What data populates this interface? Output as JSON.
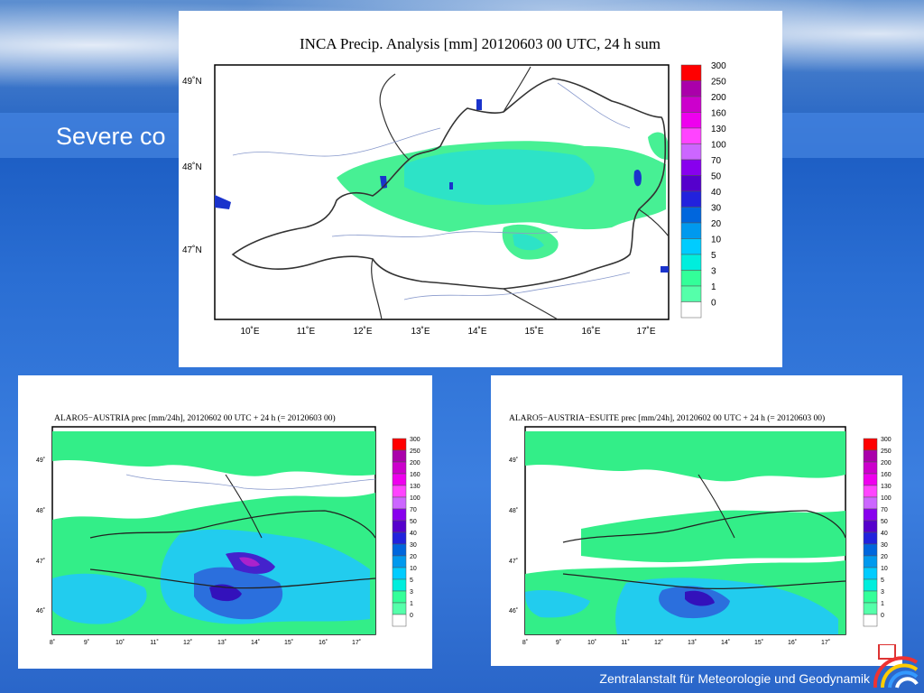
{
  "slide": {
    "title": "Severe co",
    "footer": "Zentralanstalt für Meteorologie und Geodynamik"
  },
  "main_map": {
    "title": "INCA Precip. Analysis [mm] 20120603 00 UTC, 24 h sum",
    "lat_labels": [
      "49˚N",
      "48˚N",
      "47˚N"
    ],
    "lon_labels": [
      "10˚E",
      "11˚E",
      "12˚E",
      "13˚E",
      "14˚E",
      "15˚E",
      "16˚E",
      "17˚E"
    ],
    "colorbar_labels": [
      "300",
      "250",
      "200",
      "160",
      "130",
      "100",
      "70",
      "50",
      "40",
      "30",
      "20",
      "10",
      "5",
      "3",
      "1",
      "0"
    ]
  },
  "left_map": {
    "title": "ALARO5−AUSTRIA prec [mm/24h], 20120602 00 UTC + 24 h (= 20120603 00)",
    "lat_labels": [
      "49˚",
      "48˚",
      "47˚",
      "46˚"
    ],
    "lon_labels": [
      "8˚",
      "9˚",
      "10˚",
      "11˚",
      "12˚",
      "13˚",
      "14˚",
      "15˚",
      "16˚",
      "17˚"
    ],
    "colorbar_labels": [
      "300",
      "250",
      "200",
      "160",
      "130",
      "100",
      "70",
      "50",
      "40",
      "30",
      "20",
      "10",
      "5",
      "3",
      "1",
      "0"
    ]
  },
  "right_map": {
    "title": "ALARO5−AUSTRIA−ESUITE prec [mm/24h], 20120602 00 UTC + 24 h (= 20120603 00)",
    "lat_labels": [
      "49˚",
      "48˚",
      "47˚",
      "46˚"
    ],
    "lon_labels": [
      "8˚",
      "9˚",
      "10˚",
      "11˚",
      "12˚",
      "13˚",
      "14˚",
      "15˚",
      "16˚",
      "17˚"
    ],
    "colorbar_labels": [
      "300",
      "250",
      "200",
      "160",
      "130",
      "100",
      "70",
      "50",
      "40",
      "30",
      "20",
      "10",
      "5",
      "3",
      "1",
      "0"
    ]
  },
  "colorbar_colors": [
    "#ff0000",
    "#aa00aa",
    "#cc00cc",
    "#ee00ee",
    "#ff44ff",
    "#cc66ff",
    "#8800ee",
    "#5500cc",
    "#2222dd",
    "#0066dd",
    "#0099ee",
    "#00ccff",
    "#00eedd",
    "#33ff99",
    "#55ffaa",
    "#ffffff"
  ],
  "icons": [
    "zamg-logo-icon"
  ]
}
